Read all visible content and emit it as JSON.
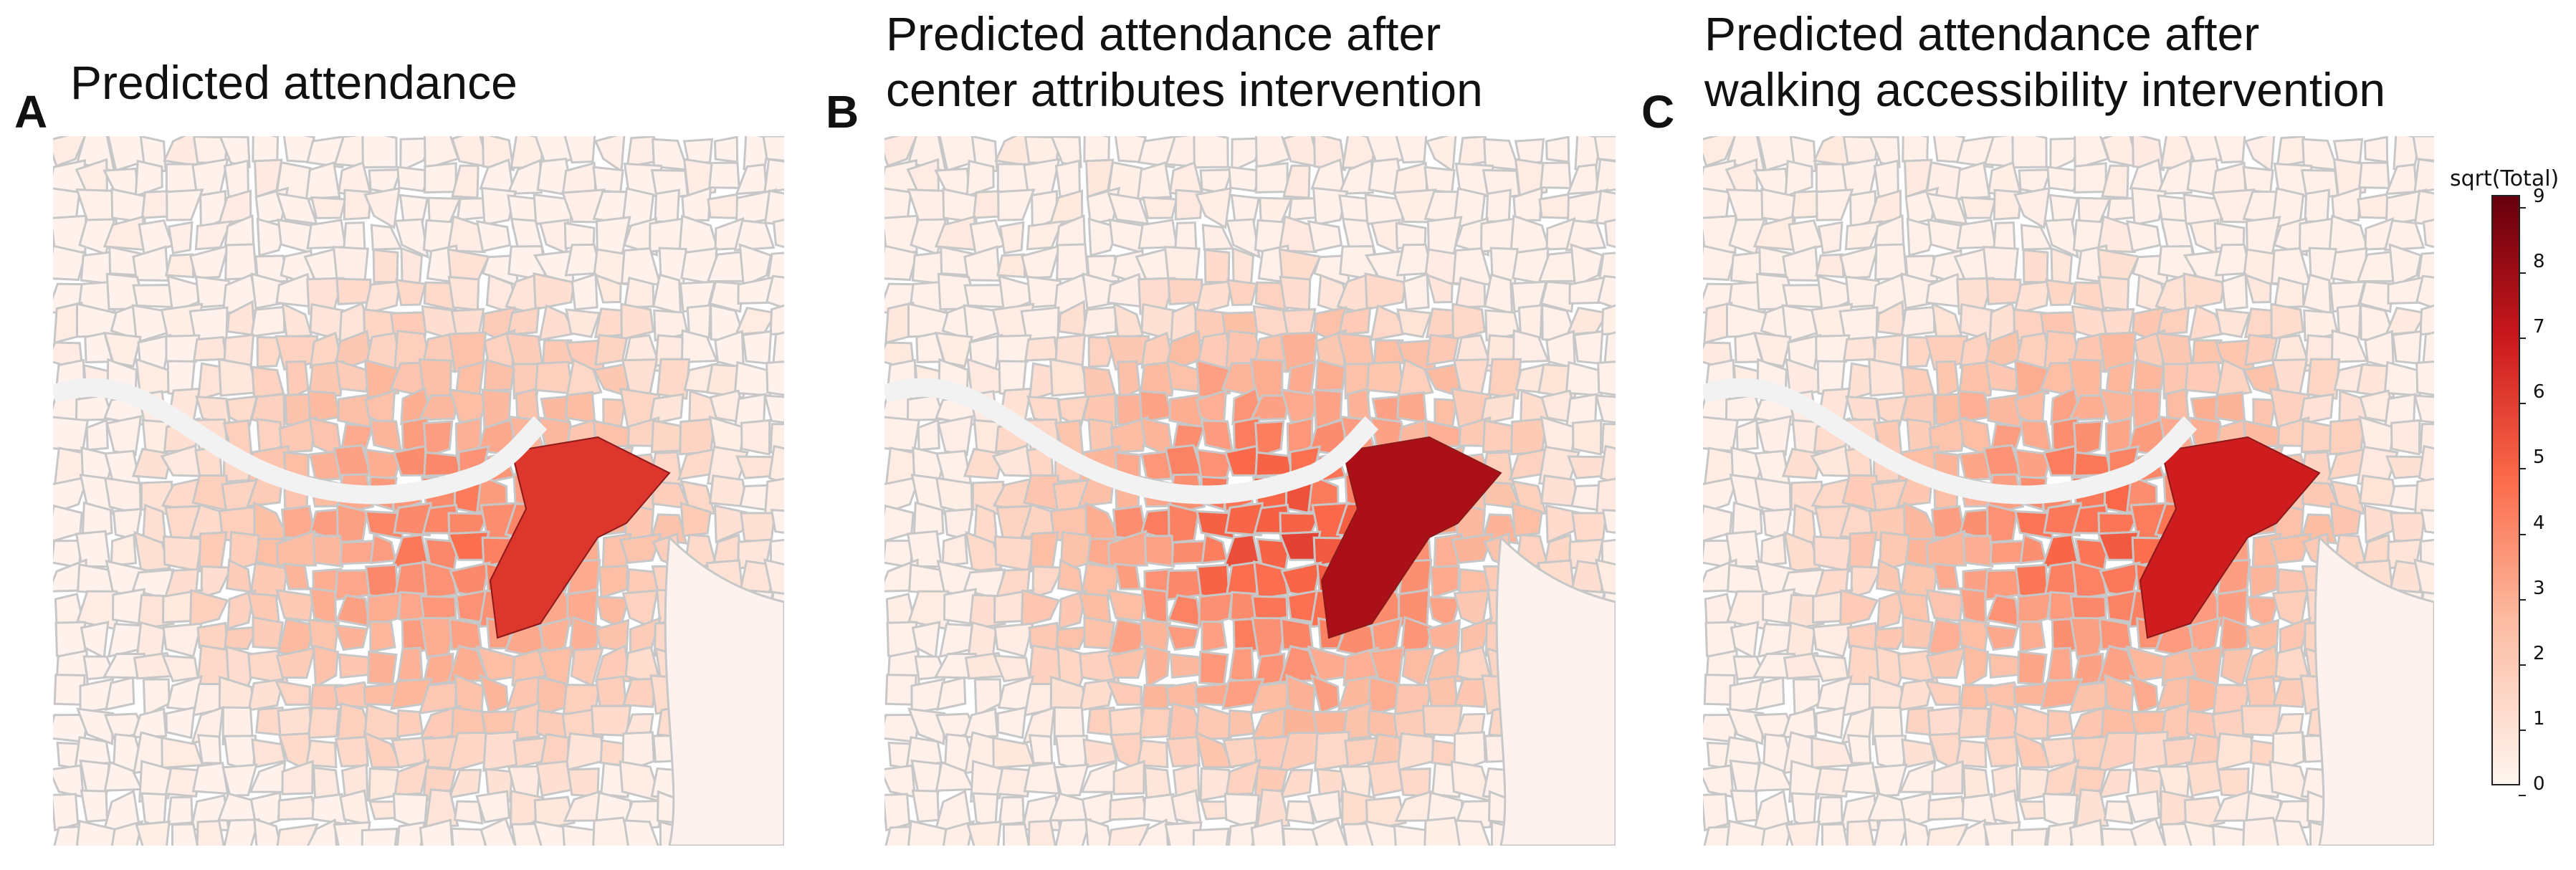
{
  "figure": {
    "panels": [
      {
        "id": "A",
        "letter": "A",
        "title": "Predicted attendance",
        "scale": 0.78
      },
      {
        "id": "B",
        "letter": "B",
        "title": "Predicted attendance after\ncenter attributes intervention",
        "scale": 1.0
      },
      {
        "id": "C",
        "letter": "C",
        "title": "Predicted attendance after\nwalking accessibility intervention",
        "scale": 0.88
      }
    ],
    "colorbar": {
      "label": "sqrt(Total)",
      "min": 0,
      "max": 9,
      "ticks": [
        "0",
        "1",
        "2",
        "3",
        "4",
        "5",
        "6",
        "7",
        "8",
        "9"
      ],
      "colors": {
        "low": "#fff5f0",
        "mid_low": "#fcbba1",
        "mid": "#fb6a4a",
        "mid_high": "#cb181d",
        "high": "#67000d"
      }
    },
    "boundary_color": "#c7c7c7",
    "river_color": "#f2f2f2"
  }
}
